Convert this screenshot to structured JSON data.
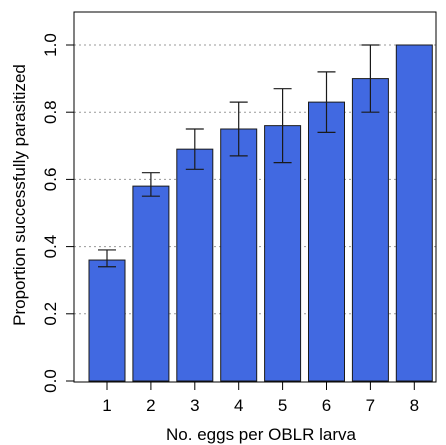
{
  "chart_data": {
    "type": "bar",
    "categories": [
      "1",
      "2",
      "3",
      "4",
      "5",
      "6",
      "7",
      "8"
    ],
    "values": [
      0.36,
      0.58,
      0.69,
      0.75,
      0.76,
      0.83,
      0.9,
      1.0
    ],
    "error_low": [
      0.34,
      0.55,
      0.63,
      0.67,
      0.65,
      0.74,
      0.8,
      1.0
    ],
    "error_high": [
      0.39,
      0.62,
      0.75,
      0.83,
      0.87,
      0.92,
      1.0,
      1.0
    ],
    "xlabel": "No. eggs per OBLR larva",
    "ylabel": "Proportion successfully parasitized",
    "ylim": [
      0,
      1.0
    ],
    "yticks": [
      "0.0",
      "0.2",
      "0.4",
      "0.6",
      "0.8",
      "1.0"
    ],
    "grid": "horizontal dotted",
    "bar_color": "#4169E1"
  }
}
